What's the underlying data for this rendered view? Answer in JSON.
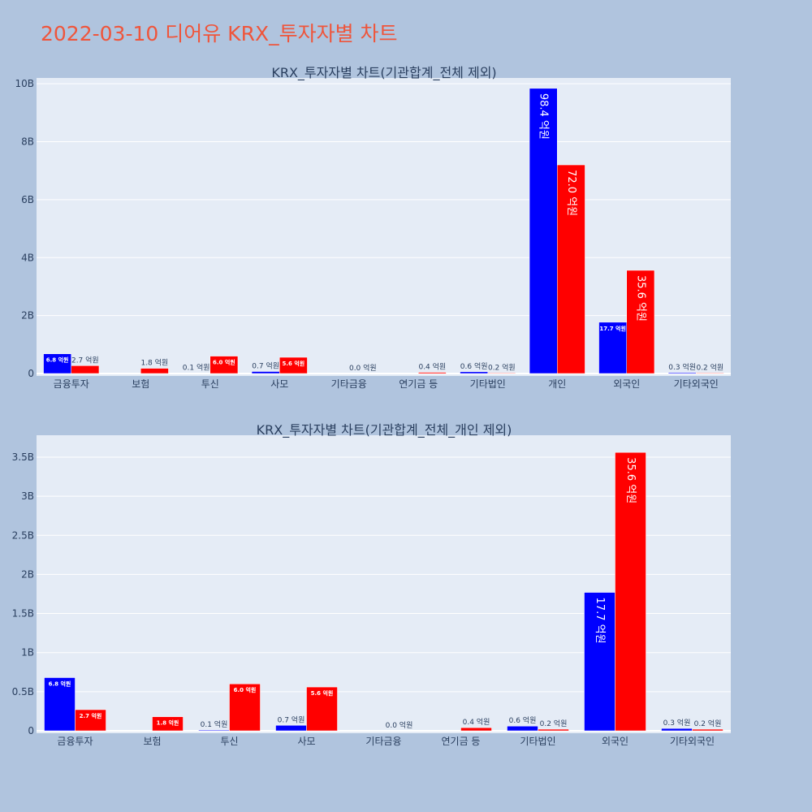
{
  "title": "2022-03-10 디어유 KRX_투자자별 차트",
  "colors": {
    "buy": "#0000ff",
    "sell": "#ff0000",
    "plot_bg": "#e5ecf6",
    "page_bg": "#b0c4de"
  },
  "chart_data": [
    {
      "type": "bar",
      "title": "KRX_투자자별 차트(기관합계_전체 제외)",
      "categories": [
        "금융투자",
        "보험",
        "투신",
        "사모",
        "기타금융",
        "연기금 등",
        "기타법인",
        "개인",
        "외국인",
        "기타외국인"
      ],
      "y_ticks": [
        "0",
        "2B",
        "4B",
        "6B",
        "8B",
        "10B"
      ],
      "ylim": [
        0,
        10200000000
      ],
      "grid": true,
      "series": [
        {
          "values": [
            680000000,
            0,
            10000000,
            70000000,
            0,
            0,
            60000000,
            9840000000,
            1770000000,
            30000000
          ],
          "labels": [
            "6.8 억원",
            "",
            "0.1 억원",
            "0.7 억원",
            "",
            "",
            "0.6 억원",
            "98.4 억원",
            "17.7 억원",
            "0.3 억원"
          ]
        },
        {
          "values": [
            270000000,
            180000000,
            600000000,
            560000000,
            0,
            40000000,
            20000000,
            7200000000,
            3560000000,
            20000000
          ],
          "labels": [
            "2.7 억원",
            "1.8 억원",
            "6.0 억원",
            "5.6 억원",
            "0.0 억원",
            "0.4 억원",
            "0.2 억원",
            "72.0 억원",
            "35.6 억원",
            "0.2 억원"
          ]
        }
      ]
    },
    {
      "type": "bar",
      "title": "KRX_투자자별 차트(기관합계_전체_개인 제외)",
      "categories": [
        "금융투자",
        "보험",
        "투신",
        "사모",
        "기타금융",
        "연기금 등",
        "기타법인",
        "외국인",
        "기타외국인"
      ],
      "y_ticks": [
        "0",
        "0.5B",
        "1B",
        "1.5B",
        "2B",
        "2.5B",
        "3B",
        "3.5B"
      ],
      "ylim": [
        0,
        3780000000
      ],
      "grid": true,
      "series": [
        {
          "values": [
            680000000,
            0,
            10000000,
            70000000,
            0,
            0,
            60000000,
            1770000000,
            30000000
          ],
          "labels": [
            "6.8 억원",
            "",
            "0.1 억원",
            "0.7 억원",
            "",
            "",
            "0.6 억원",
            "17.7 억원",
            "0.3 억원"
          ]
        },
        {
          "values": [
            270000000,
            180000000,
            600000000,
            560000000,
            0,
            40000000,
            20000000,
            3560000000,
            20000000
          ],
          "labels": [
            "2.7 억원",
            "1.8 억원",
            "6.0 억원",
            "5.6 억원",
            "0.0 억원",
            "0.4 억원",
            "0.2 억원",
            "35.6 억원",
            "0.2 억원"
          ]
        }
      ]
    }
  ]
}
